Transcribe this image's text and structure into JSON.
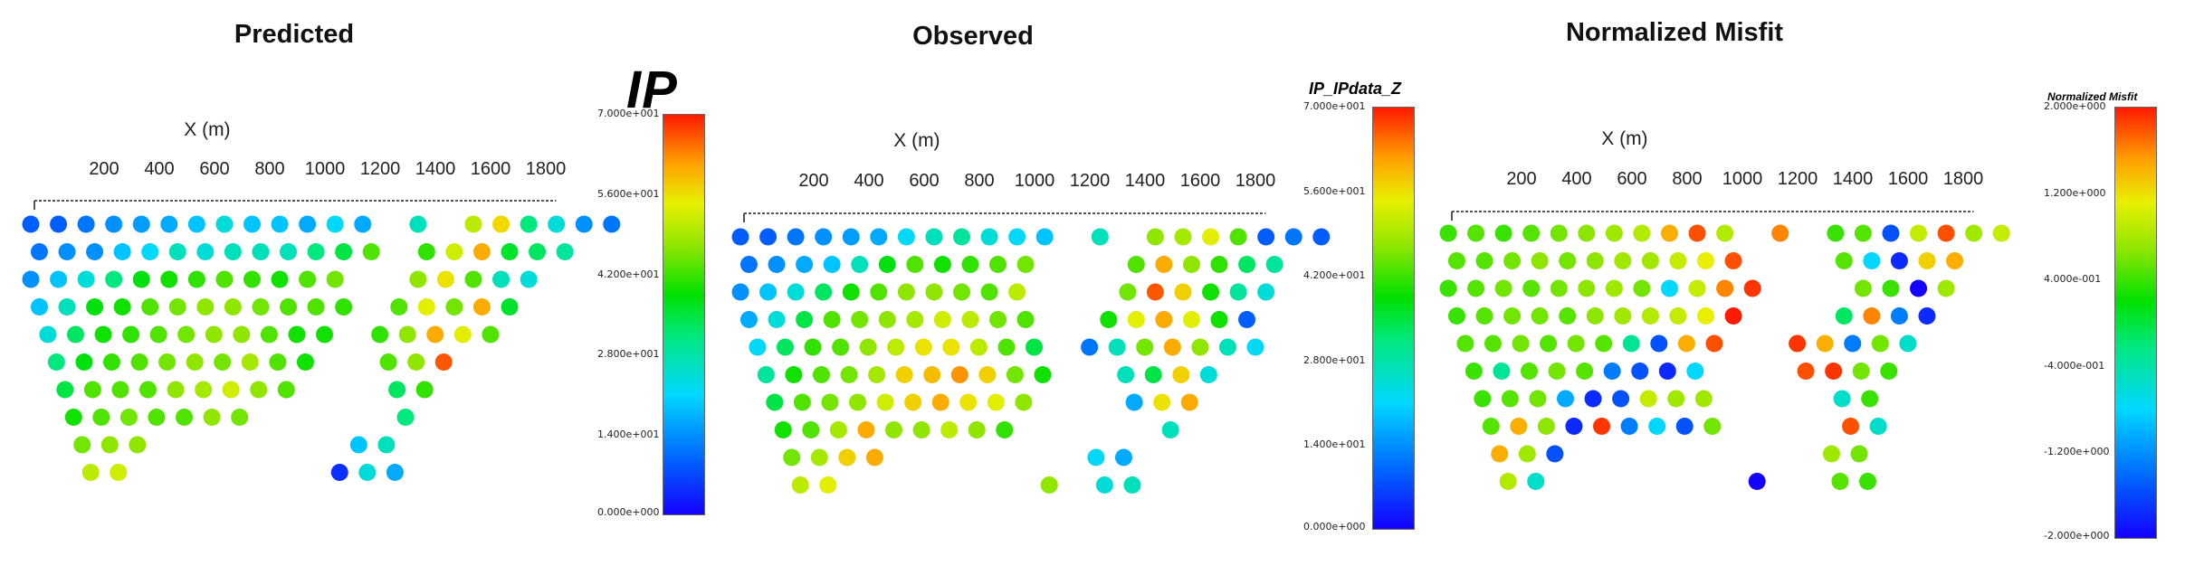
{
  "panels": [
    {
      "title": "Predicted",
      "colorbar_title": "IP"
    },
    {
      "title": "Observed",
      "colorbar_title": "IP_IPdata_Z"
    },
    {
      "title": "Normalized Misfit",
      "colorbar_title": "Normalized Misfit"
    }
  ],
  "chart_data": [
    {
      "type": "scatter",
      "title": "Predicted",
      "xlabel": "X (m)",
      "xticks": [
        "200",
        "400",
        "600",
        "800",
        "1000",
        "1200",
        "1400",
        "1600",
        "1800"
      ],
      "colorbar": {
        "label": "IP",
        "min": 0,
        "max": 70,
        "ticks": [
          "7.000e+001",
          "5.600e+001",
          "4.200e+001",
          "2.800e+001",
          "1.400e+001",
          "0.000e+000"
        ]
      },
      "colors": [
        "#1400ff",
        "#0066ff",
        "#00d8ff",
        "#00e87a",
        "#00e000",
        "#8ee600",
        "#e8f000",
        "#ff9f00",
        "#ff1a00"
      ],
      "rows": [
        {
          "x0": 50,
          "values": [
            8,
            8,
            10,
            12,
            13,
            14,
            16,
            20,
            16,
            16,
            14,
            18,
            14,
            null,
            22,
            null,
            48,
            55,
            26,
            20,
            12,
            10
          ]
        },
        {
          "x0": 100,
          "values": [
            10,
            12,
            12,
            16,
            18,
            22,
            20,
            22,
            22,
            22,
            26,
            30,
            40,
            null,
            38,
            50,
            60,
            32,
            28,
            24
          ]
        },
        {
          "x0": 50,
          "values": [
            12,
            16,
            20,
            26,
            34,
            36,
            38,
            40,
            38,
            36,
            40,
            42,
            null,
            null,
            44,
            54,
            40,
            22,
            20
          ]
        },
        {
          "x0": 100,
          "values": [
            16,
            22,
            34,
            36,
            40,
            42,
            44,
            44,
            42,
            40,
            40,
            38,
            null,
            40,
            52,
            42,
            60,
            32
          ]
        },
        {
          "x0": 150,
          "values": [
            20,
            28,
            36,
            38,
            40,
            42,
            44,
            44,
            40,
            36,
            36,
            null,
            38,
            44,
            60,
            52,
            40
          ]
        },
        {
          "x0": 200,
          "values": [
            26,
            34,
            38,
            40,
            42,
            44,
            42,
            46,
            40,
            36,
            null,
            null,
            40,
            44,
            66
          ]
        },
        {
          "x0": 250,
          "values": [
            30,
            40,
            40,
            40,
            44,
            46,
            50,
            44,
            40,
            null,
            null,
            null,
            28,
            38
          ]
        },
        {
          "x0": 300,
          "values": [
            36,
            40,
            42,
            40,
            40,
            44,
            42,
            null,
            null,
            null,
            null,
            null,
            26
          ]
        },
        {
          "x0": 350,
          "values": [
            42,
            44,
            44,
            null,
            null,
            null,
            null,
            null,
            null,
            null,
            16,
            22
          ]
        },
        {
          "x0": 400,
          "values": [
            48,
            50,
            null,
            null,
            null,
            null,
            null,
            null,
            null,
            4,
            20,
            14
          ]
        }
      ]
    },
    {
      "type": "scatter",
      "title": "Observed",
      "xlabel": "X (m)",
      "xticks": [
        "200",
        "400",
        "600",
        "800",
        "1000",
        "1200",
        "1400",
        "1600",
        "1800"
      ],
      "colorbar": {
        "label": "IP_IPdata_Z",
        "min": 0,
        "max": 70,
        "ticks": [
          "7.000e+001",
          "5.600e+001",
          "4.200e+001",
          "2.800e+001",
          "1.400e+001",
          "0.000e+000"
        ]
      },
      "colors": [
        "#1400ff",
        "#0066ff",
        "#00d8ff",
        "#00e87a",
        "#00e000",
        "#8ee600",
        "#e8f000",
        "#ff9f00",
        "#ff1a00"
      ],
      "rows": [
        {
          "x0": 50,
          "values": [
            8,
            8,
            10,
            12,
            13,
            14,
            18,
            22,
            24,
            20,
            18,
            16,
            null,
            22,
            null,
            44,
            46,
            52,
            40,
            8,
            10,
            8
          ]
        },
        {
          "x0": 100,
          "values": [
            10,
            12,
            14,
            16,
            22,
            34,
            40,
            36,
            38,
            40,
            42,
            null,
            null,
            null,
            40,
            60,
            44,
            38,
            28,
            24
          ]
        },
        {
          "x0": 50,
          "values": [
            12,
            16,
            20,
            28,
            36,
            40,
            44,
            44,
            42,
            40,
            48,
            null,
            null,
            null,
            42,
            66,
            56,
            36,
            24,
            20
          ]
        },
        {
          "x0": 100,
          "values": [
            14,
            20,
            30,
            40,
            42,
            44,
            46,
            50,
            48,
            42,
            40,
            null,
            null,
            36,
            52,
            60,
            52,
            36,
            8
          ]
        },
        {
          "x0": 150,
          "values": [
            18,
            28,
            38,
            40,
            44,
            48,
            54,
            54,
            48,
            40,
            30,
            null,
            10,
            22,
            42,
            60,
            44,
            22,
            18
          ]
        },
        {
          "x0": 200,
          "values": [
            24,
            36,
            40,
            42,
            46,
            56,
            58,
            62,
            56,
            42,
            36,
            null,
            null,
            22,
            30,
            56,
            20
          ]
        },
        {
          "x0": 250,
          "values": [
            30,
            40,
            42,
            44,
            50,
            56,
            60,
            54,
            52,
            44,
            null,
            null,
            null,
            14,
            54,
            60
          ]
        },
        {
          "x0": 300,
          "values": [
            36,
            40,
            46,
            60,
            44,
            44,
            48,
            44,
            38,
            null,
            null,
            null,
            null,
            null,
            22
          ]
        },
        {
          "x0": 350,
          "values": [
            42,
            46,
            56,
            60,
            null,
            null,
            null,
            null,
            null,
            null,
            null,
            18,
            14
          ]
        },
        {
          "x0": 400,
          "values": [
            48,
            52,
            null,
            null,
            null,
            null,
            null,
            null,
            null,
            44,
            null,
            20,
            22
          ]
        }
      ]
    },
    {
      "type": "scatter",
      "title": "Normalized Misfit",
      "xlabel": "X (m)",
      "xticks": [
        "200",
        "400",
        "600",
        "800",
        "1000",
        "1200",
        "1400",
        "1600",
        "1800"
      ],
      "colorbar": {
        "label": "Normalized Misfit",
        "min": -2,
        "max": 2,
        "ticks": [
          "2.000e+000",
          "1.200e+000",
          "4.000e-001",
          "-4.000e-001",
          "-1.200e+000",
          "-2.000e+000"
        ]
      },
      "colors": [
        "#1400ff",
        "#0066ff",
        "#00d8ff",
        "#00e87a",
        "#00e000",
        "#8ee600",
        "#e8f000",
        "#ff9f00",
        "#ff1a00"
      ],
      "rows": [
        {
          "x0": 50,
          "values": [
            0.2,
            0.3,
            0.2,
            0.3,
            0.4,
            0.5,
            0.6,
            0.7,
            1.4,
            1.8,
            0.7,
            null,
            1.6,
            null,
            0.2,
            0.3,
            -1.6,
            0.8,
            1.8,
            0.6,
            0.8
          ]
        },
        {
          "x0": 100,
          "values": [
            0.3,
            0.3,
            0.4,
            0.5,
            0.4,
            0.5,
            0.6,
            0.6,
            0.8,
            1.0,
            1.8,
            null,
            null,
            null,
            0.3,
            -1.0,
            -1.8,
            1.2,
            1.4
          ]
        },
        {
          "x0": 50,
          "values": [
            0.2,
            0.3,
            0.4,
            0.3,
            0.4,
            0.5,
            0.6,
            0.4,
            -1.0,
            0.8,
            1.6,
            1.9,
            null,
            null,
            null,
            0.4,
            0.2,
            -2.0,
            0.6
          ]
        },
        {
          "x0": 100,
          "values": [
            0.2,
            0.3,
            0.4,
            0.4,
            0.3,
            0.5,
            0.6,
            0.7,
            0.8,
            1.0,
            2.0,
            null,
            null,
            null,
            -0.4,
            1.6,
            -1.4,
            -1.8
          ]
        },
        {
          "x0": 150,
          "values": [
            0.3,
            0.3,
            0.4,
            0.3,
            0.4,
            0.3,
            -0.6,
            -1.6,
            1.4,
            1.8,
            null,
            null,
            1.9,
            1.4,
            -1.4,
            0.4,
            -0.8
          ]
        },
        {
          "x0": 200,
          "values": [
            0.2,
            -0.6,
            0.3,
            0.4,
            0.3,
            -1.4,
            -1.6,
            -1.8,
            -1.0,
            null,
            null,
            null,
            1.8,
            1.9,
            0.4,
            0.2
          ]
        },
        {
          "x0": 250,
          "values": [
            0.2,
            0.3,
            0.4,
            -1.2,
            -1.8,
            -1.6,
            0.8,
            0.6,
            0.6,
            null,
            null,
            null,
            null,
            -0.8,
            0.2
          ]
        },
        {
          "x0": 300,
          "values": [
            0.3,
            1.4,
            0.5,
            -1.8,
            1.9,
            -1.4,
            -1.0,
            -1.6,
            0.4,
            null,
            null,
            null,
            null,
            1.8,
            -0.8
          ]
        },
        {
          "x0": 350,
          "values": [
            1.4,
            0.6,
            -1.6,
            null,
            null,
            null,
            null,
            null,
            null,
            null,
            null,
            null,
            0.6,
            0.4
          ]
        },
        {
          "x0": 400,
          "values": [
            0.7,
            -0.8,
            null,
            null,
            null,
            null,
            null,
            null,
            null,
            -2.0,
            null,
            null,
            0.3,
            0.2
          ]
        }
      ]
    }
  ]
}
